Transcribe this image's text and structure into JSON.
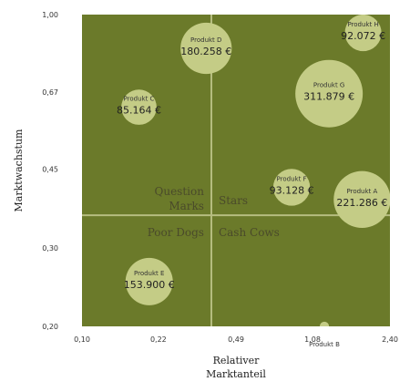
{
  "chart_data": {
    "type": "scatter",
    "subtype": "bubble-bcg-matrix",
    "xlabel": [
      "Relativer",
      "Marktanteil"
    ],
    "ylabel": "Marktwachstum",
    "x_ticks": [
      "0,10",
      "0,22",
      "0,49",
      "1,08",
      "2,40"
    ],
    "y_ticks": [
      "0,20",
      "0,30",
      "0,45",
      "0,67",
      "1,00"
    ],
    "x_scale": "log",
    "y_scale": "log",
    "xlim": [
      0.1,
      2.4
    ],
    "ylim": [
      0.2,
      1.0
    ],
    "divider": {
      "x": 0.38,
      "y": 0.355
    },
    "quadrants": [
      {
        "name": "question_marks",
        "label_lines": [
          "Question",
          "Marks"
        ]
      },
      {
        "name": "stars",
        "label_lines": [
          "Stars"
        ]
      },
      {
        "name": "poor_dogs",
        "label_lines": [
          "Poor Dogs"
        ]
      },
      {
        "name": "cash_cows",
        "label_lines": [
          "Cash Cows"
        ]
      }
    ],
    "points": [
      {
        "name": "Produkt A",
        "value_label": "221.286 €",
        "x": 1.8,
        "y": 0.385,
        "size": 221286
      },
      {
        "name": "Produkt B",
        "value_label": "",
        "x": 1.22,
        "y": 0.2,
        "size": 6000
      },
      {
        "name": "Produkt C",
        "value_label": "85.164 €",
        "x": 0.18,
        "y": 0.62,
        "size": 85164
      },
      {
        "name": "Produkt D",
        "value_label": "180.258 €",
        "x": 0.36,
        "y": 0.84,
        "size": 180258
      },
      {
        "name": "Produkt E",
        "value_label": "153.900 €",
        "x": 0.2,
        "y": 0.252,
        "size": 153900
      },
      {
        "name": "Produkt F",
        "value_label": "93.128 €",
        "x": 0.87,
        "y": 0.41,
        "size": 93128
      },
      {
        "name": "Produkt G",
        "value_label": "311.879 €",
        "x": 1.28,
        "y": 0.665,
        "size": 311879
      },
      {
        "name": "Produkt H",
        "value_label": "92.072 €",
        "x": 1.82,
        "y": 0.91,
        "size": 92072
      }
    ],
    "colors": {
      "plot_background": "#6b7a2a",
      "bubble_fill": "#c4cc86",
      "divider": "#b6bd80"
    }
  }
}
